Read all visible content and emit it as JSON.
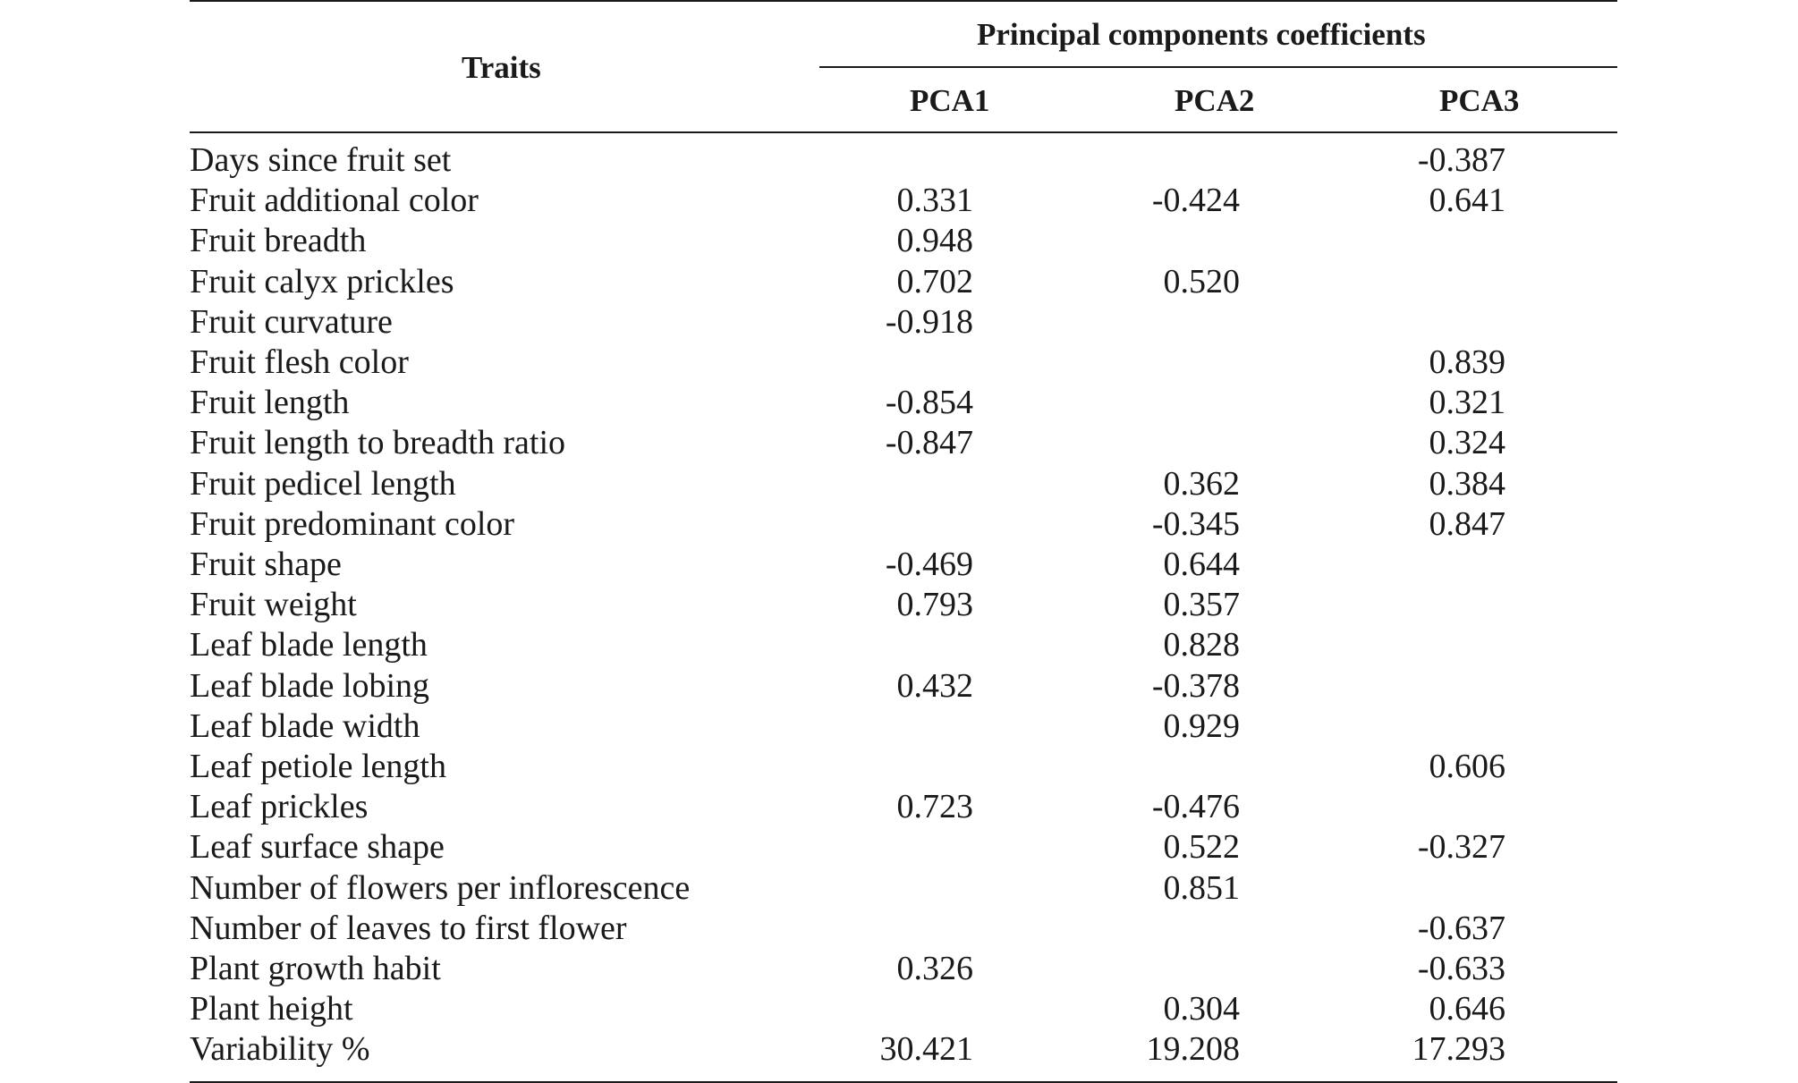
{
  "header": {
    "traits": "Traits",
    "group": "Principal components coefficients",
    "columns": [
      "PCA1",
      "PCA2",
      "PCA3"
    ]
  },
  "rows": [
    {
      "trait": "Days since fruit set",
      "pca1": "",
      "pca2": "",
      "pca3": "-0.387"
    },
    {
      "trait": "Fruit additional color",
      "pca1": "0.331",
      "pca2": "-0.424",
      "pca3": "0.641"
    },
    {
      "trait": "Fruit breadth",
      "pca1": "0.948",
      "pca2": "",
      "pca3": ""
    },
    {
      "trait": "Fruit calyx prickles",
      "pca1": "0.702",
      "pca2": "0.520",
      "pca3": ""
    },
    {
      "trait": "Fruit curvature",
      "pca1": "-0.918",
      "pca2": "",
      "pca3": ""
    },
    {
      "trait": "Fruit flesh color",
      "pca1": "",
      "pca2": "",
      "pca3": "0.839"
    },
    {
      "trait": "Fruit length",
      "pca1": "-0.854",
      "pca2": "",
      "pca3": "0.321"
    },
    {
      "trait": "Fruit length to breadth ratio",
      "pca1": "-0.847",
      "pca2": "",
      "pca3": "0.324"
    },
    {
      "trait": "Fruit pedicel length",
      "pca1": "",
      "pca2": "0.362",
      "pca3": "0.384"
    },
    {
      "trait": "Fruit predominant color",
      "pca1": "",
      "pca2": "-0.345",
      "pca3": "0.847"
    },
    {
      "trait": "Fruit shape",
      "pca1": "-0.469",
      "pca2": "0.644",
      "pca3": ""
    },
    {
      "trait": "Fruit weight",
      "pca1": "0.793",
      "pca2": "0.357",
      "pca3": ""
    },
    {
      "trait": "Leaf blade length",
      "pca1": "",
      "pca2": "0.828",
      "pca3": ""
    },
    {
      "trait": "Leaf blade lobing",
      "pca1": "0.432",
      "pca2": "-0.378",
      "pca3": ""
    },
    {
      "trait": "Leaf blade width",
      "pca1": "",
      "pca2": "0.929",
      "pca3": ""
    },
    {
      "trait": "Leaf petiole length",
      "pca1": "",
      "pca2": "",
      "pca3": "0.606"
    },
    {
      "trait": "Leaf prickles",
      "pca1": "0.723",
      "pca2": "-0.476",
      "pca3": ""
    },
    {
      "trait": "Leaf surface shape",
      "pca1": "",
      "pca2": "0.522",
      "pca3": "-0.327"
    },
    {
      "trait": "Number of flowers per inflorescence",
      "pca1": "",
      "pca2": "0.851",
      "pca3": ""
    },
    {
      "trait": "Number of leaves to first flower",
      "pca1": "",
      "pca2": "",
      "pca3": "-0.637"
    },
    {
      "trait": "Plant growth habit",
      "pca1": "0.326",
      "pca2": "",
      "pca3": "-0.633"
    },
    {
      "trait": "Plant height",
      "pca1": "",
      "pca2": "0.304",
      "pca3": "0.646"
    },
    {
      "trait": "Variability %",
      "pca1": "30.421",
      "pca2": "19.208",
      "pca3": "17.293"
    }
  ]
}
